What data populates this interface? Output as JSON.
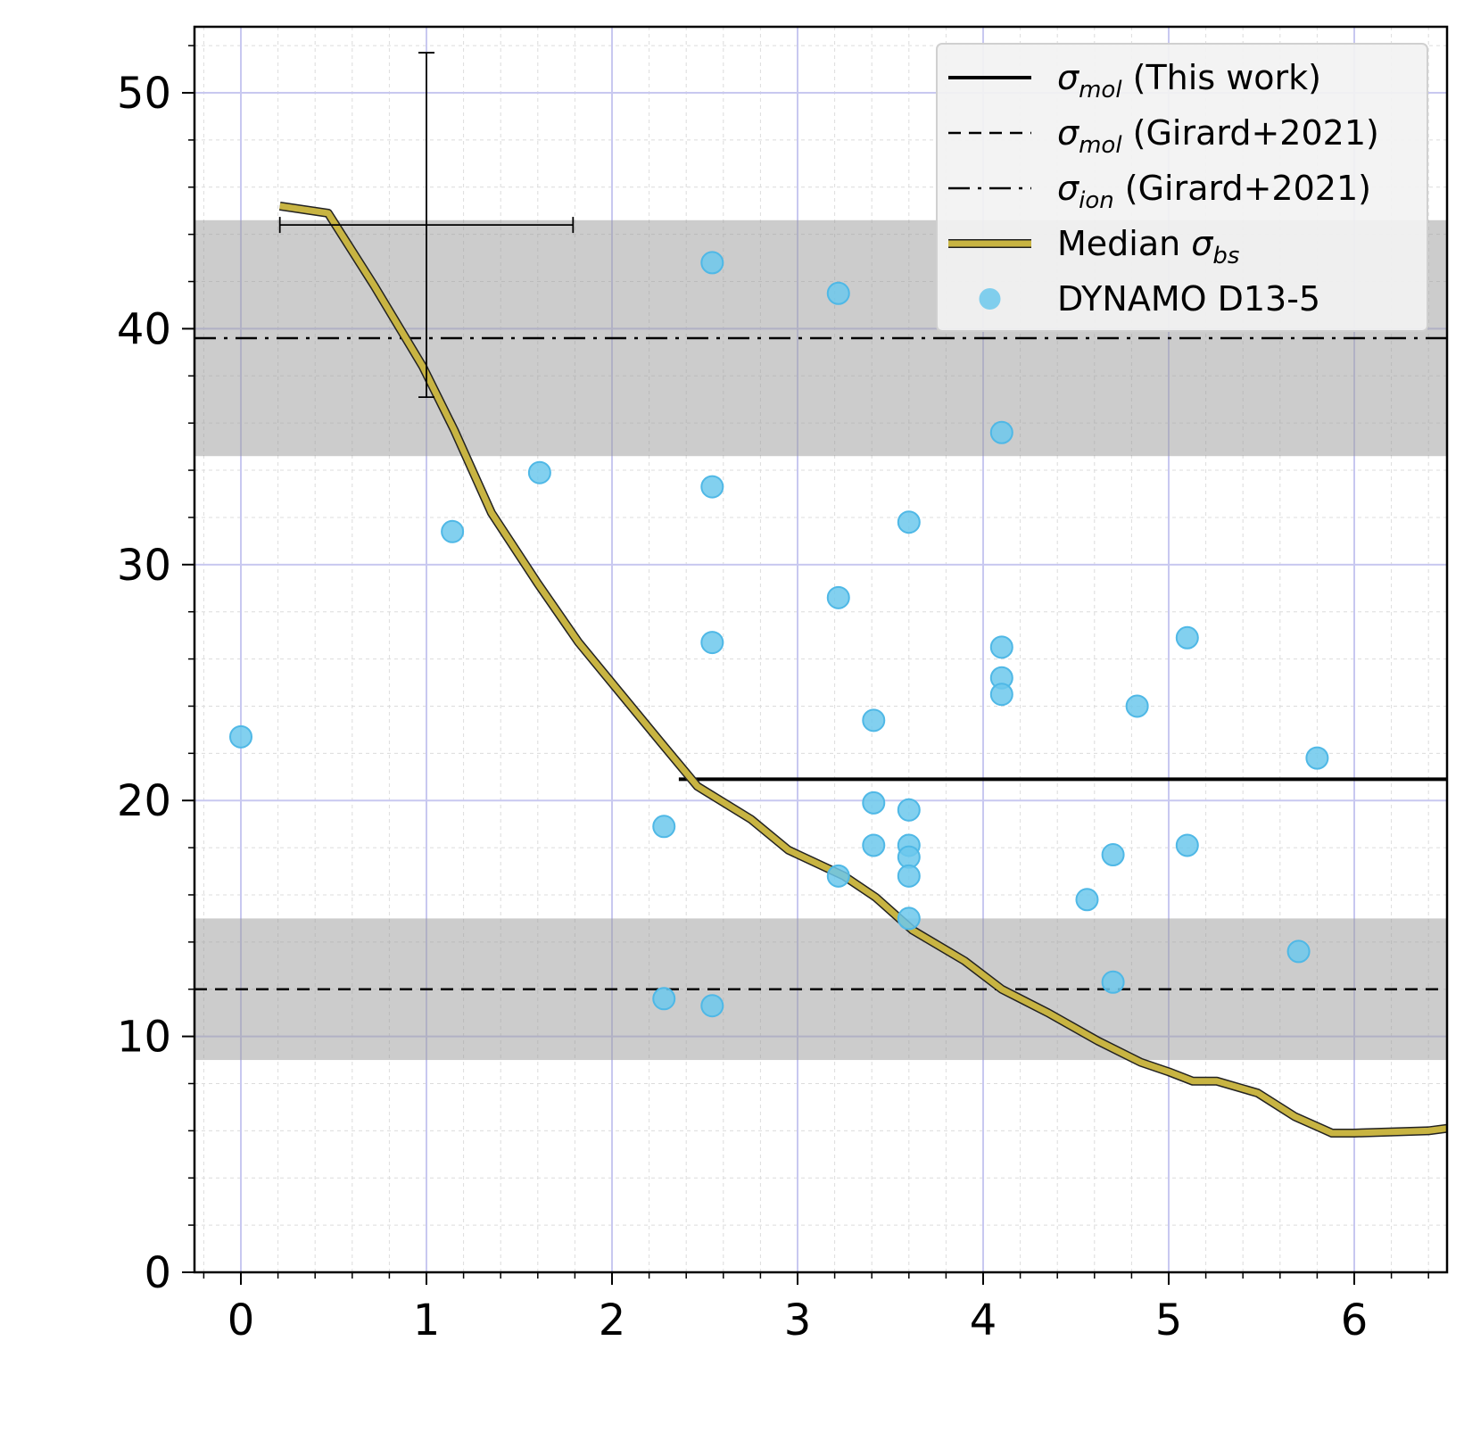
{
  "chart_data": {
    "type": "scatter",
    "title": "",
    "xlabel": "",
    "ylabel": "",
    "xlim": [
      -0.25,
      6.5
    ],
    "ylim": [
      0,
      52.8
    ],
    "x_ticks": [
      "0",
      "1",
      "2",
      "3",
      "4",
      "5",
      "6"
    ],
    "y_ticks": [
      "0",
      "10",
      "20",
      "30",
      "40",
      "50"
    ],
    "grid": true,
    "legend_position": "top-right",
    "series": [
      {
        "name": "DYNAMO D13-5",
        "kind": "scatter",
        "color": "#6cc8ec",
        "points": [
          [
            0,
            22.7
          ],
          [
            1.14,
            31.4
          ],
          [
            1.61,
            33.9
          ],
          [
            2.28,
            18.9
          ],
          [
            2.28,
            11.6
          ],
          [
            2.54,
            42.8
          ],
          [
            2.54,
            33.3
          ],
          [
            2.54,
            26.7
          ],
          [
            2.54,
            11.3
          ],
          [
            3.22,
            41.5
          ],
          [
            3.22,
            28.6
          ],
          [
            3.22,
            16.8
          ],
          [
            3.41,
            23.4
          ],
          [
            3.41,
            19.9
          ],
          [
            3.41,
            18.1
          ],
          [
            3.6,
            31.8
          ],
          [
            3.6,
            19.6
          ],
          [
            3.6,
            18.1
          ],
          [
            3.6,
            17.6
          ],
          [
            3.6,
            16.8
          ],
          [
            3.6,
            15.0
          ],
          [
            4.1,
            35.6
          ],
          [
            4.1,
            26.5
          ],
          [
            4.1,
            25.2
          ],
          [
            4.1,
            24.5
          ],
          [
            4.56,
            15.8
          ],
          [
            4.7,
            17.7
          ],
          [
            4.7,
            12.3
          ],
          [
            4.83,
            24.0
          ],
          [
            5.1,
            26.9
          ],
          [
            5.1,
            18.1
          ],
          [
            5.7,
            13.6
          ],
          [
            5.8,
            21.8
          ]
        ]
      },
      {
        "name": "Median σbs",
        "kind": "line",
        "color": "#c8b442",
        "points": [
          [
            0.21,
            45.2
          ],
          [
            0.47,
            44.9
          ],
          [
            0.72,
            41.8
          ],
          [
            0.98,
            38.4
          ],
          [
            1.15,
            35.7
          ],
          [
            1.35,
            32.2
          ],
          [
            1.6,
            29.2
          ],
          [
            1.82,
            26.7
          ],
          [
            2.05,
            24.5
          ],
          [
            2.27,
            22.4
          ],
          [
            2.46,
            20.6
          ],
          [
            2.75,
            19.2
          ],
          [
            2.95,
            17.9
          ],
          [
            3.25,
            16.8
          ],
          [
            3.42,
            15.9
          ],
          [
            3.62,
            14.5
          ],
          [
            3.9,
            13.2
          ],
          [
            4.1,
            12.0
          ],
          [
            4.35,
            11.0
          ],
          [
            4.62,
            9.8
          ],
          [
            4.85,
            8.9
          ],
          [
            5.0,
            8.5
          ],
          [
            5.13,
            8.1
          ],
          [
            5.26,
            8.1
          ],
          [
            5.48,
            7.6
          ],
          [
            5.68,
            6.6
          ],
          [
            5.88,
            5.9
          ],
          [
            6.0,
            5.9
          ],
          [
            6.4,
            6.0
          ],
          [
            6.5,
            6.1
          ]
        ]
      }
    ],
    "horizontal_lines": [
      {
        "name": "σmol (This work)",
        "y": 20.9,
        "x_start": 2.36,
        "style": "solid"
      },
      {
        "name": "σmol (Girard+2021)",
        "y": 12.0,
        "x_start": -0.25,
        "style": "dashed",
        "band": [
          9.0,
          15.0
        ]
      },
      {
        "name": "σion (Girard+2021)",
        "y": 39.6,
        "x_start": -0.25,
        "style": "dashdot",
        "band": [
          34.6,
          44.6
        ]
      }
    ],
    "error_bar": {
      "x": 1.0,
      "y": 44.4,
      "x_range": [
        0.21,
        1.79
      ],
      "y_range": [
        37.1,
        51.7
      ]
    },
    "legend": [
      {
        "symbol": "σ",
        "sub": "mol",
        "suffix": " (This work)",
        "style": "solid"
      },
      {
        "symbol": "σ",
        "sub": "mol",
        "suffix": " (Girard+2021)",
        "style": "dashed"
      },
      {
        "symbol": "σ",
        "sub": "ion",
        "suffix": " (Girard+2021)",
        "style": "dashdot"
      },
      {
        "prefix": "Median ",
        "symbol": "σ",
        "sub": "bs",
        "style": "median"
      },
      {
        "prefix": "DYNAMO D13-5",
        "style": "marker"
      }
    ]
  }
}
